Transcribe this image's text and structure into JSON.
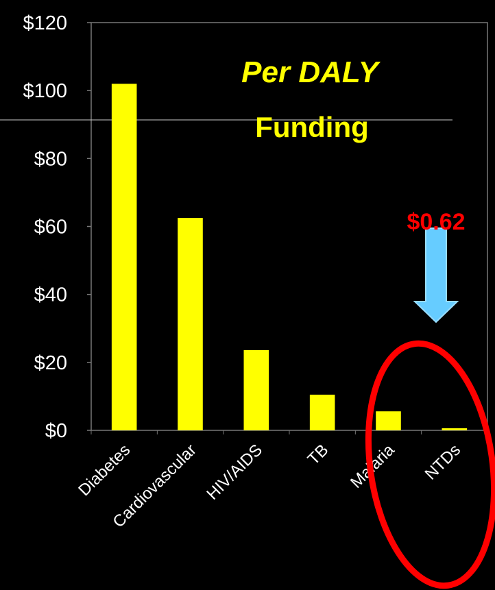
{
  "chart_data": {
    "type": "bar",
    "title": [
      "Per DALY",
      "Funding"
    ],
    "categories": [
      "Diabetes",
      "Cardiovascular",
      "HIV/AIDS",
      "TB",
      "Malaria",
      "NTDs"
    ],
    "values": [
      102,
      62.5,
      23.6,
      10.5,
      5.6,
      0.62
    ],
    "value_labels": [
      null,
      null,
      null,
      null,
      null,
      "$0.62"
    ],
    "color": "#ffff00",
    "ylim": [
      0,
      120
    ],
    "yticks": [
      {
        "value": 0,
        "label": "$0"
      },
      {
        "value": 20,
        "label": "$20"
      },
      {
        "value": 40,
        "label": "$40"
      },
      {
        "value": 60,
        "label": "$60"
      },
      {
        "value": 80,
        "label": "$80"
      },
      {
        "value": 100,
        "label": "$100"
      },
      {
        "value": 120,
        "label": "$120"
      }
    ],
    "grid": false
  }
}
